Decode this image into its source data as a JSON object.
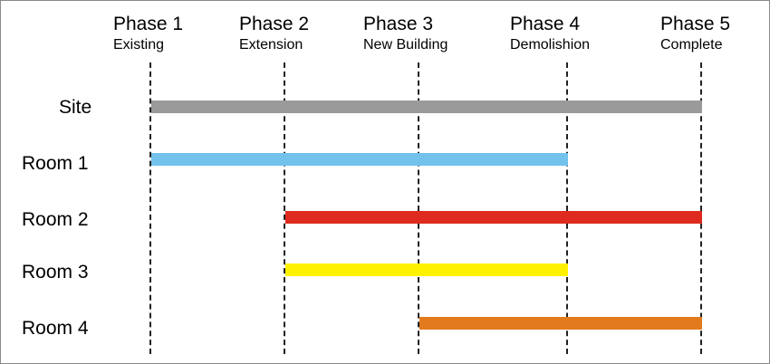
{
  "phases": [
    {
      "title": "Phase 1",
      "subtitle": "Existing"
    },
    {
      "title": "Phase 2",
      "subtitle": "Extension"
    },
    {
      "title": "Phase 3",
      "subtitle": "New Building"
    },
    {
      "title": "Phase 4",
      "subtitle": "Demolishion"
    },
    {
      "title": "Phase 5",
      "subtitle": "Complete"
    }
  ],
  "rows": [
    {
      "label": "Site",
      "start_phase": 1,
      "end_phase": 5,
      "color": "#9a9a9a"
    },
    {
      "label": "Room 1",
      "start_phase": 1,
      "end_phase": 4,
      "color": "#72c2ec"
    },
    {
      "label": "Room 2",
      "start_phase": 2,
      "end_phase": 5,
      "color": "#df2a1f"
    },
    {
      "label": "Room 3",
      "start_phase": 2,
      "end_phase": 4,
      "color": "#fff200"
    },
    {
      "label": "Room 4",
      "start_phase": 3,
      "end_phase": 5,
      "color": "#e37a1d"
    }
  ]
}
